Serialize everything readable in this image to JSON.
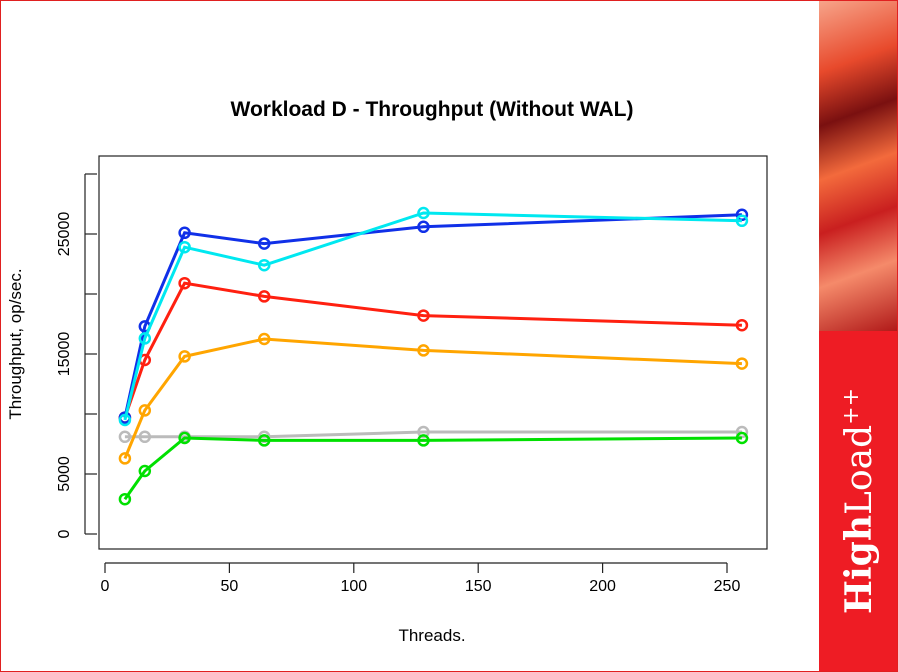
{
  "chart_data": {
    "type": "line",
    "title": "Workload D - Throughput (Without WAL)",
    "xlabel": "Threads.",
    "ylabel": "Throughput, op/sec.",
    "xlim": [
      0,
      260
    ],
    "ylim": [
      0,
      30000
    ],
    "x_ticks": [
      0,
      50,
      100,
      150,
      200,
      250
    ],
    "x_tick_labels": [
      "0",
      "50",
      "100",
      "150",
      "200",
      "250"
    ],
    "y_ticks": [
      0,
      5000,
      10000,
      15000,
      20000,
      25000,
      30000
    ],
    "y_tick_labels": [
      "0",
      "5000",
      "",
      "15000",
      "",
      "25000",
      ""
    ],
    "grid": false,
    "x": [
      8,
      16,
      32,
      64,
      128,
      256
    ],
    "series": [
      {
        "name": "gray",
        "color": "#bbbbbb",
        "values": [
          8100,
          8100,
          8100,
          8100,
          8500,
          8500
        ]
      },
      {
        "name": "green",
        "color": "#00e000",
        "values": [
          2900,
          5250,
          8000,
          7800,
          7800,
          8000
        ]
      },
      {
        "name": "orange",
        "color": "#ffa500",
        "values": [
          6300,
          10300,
          14800,
          16250,
          15300,
          14200
        ]
      },
      {
        "name": "red",
        "color": "#ff2010",
        "values": [
          9700,
          14500,
          20900,
          19800,
          18200,
          17400
        ]
      },
      {
        "name": "blue",
        "color": "#1030e8",
        "values": [
          9700,
          17300,
          25100,
          24200,
          25600,
          26600
        ]
      },
      {
        "name": "cyan",
        "color": "#00e8f0",
        "values": [
          9500,
          16300,
          23900,
          22400,
          26750,
          26100
        ]
      }
    ]
  },
  "branding": {
    "logo_bold": "High",
    "logo_light": "Load",
    "logo_sup": "++"
  }
}
